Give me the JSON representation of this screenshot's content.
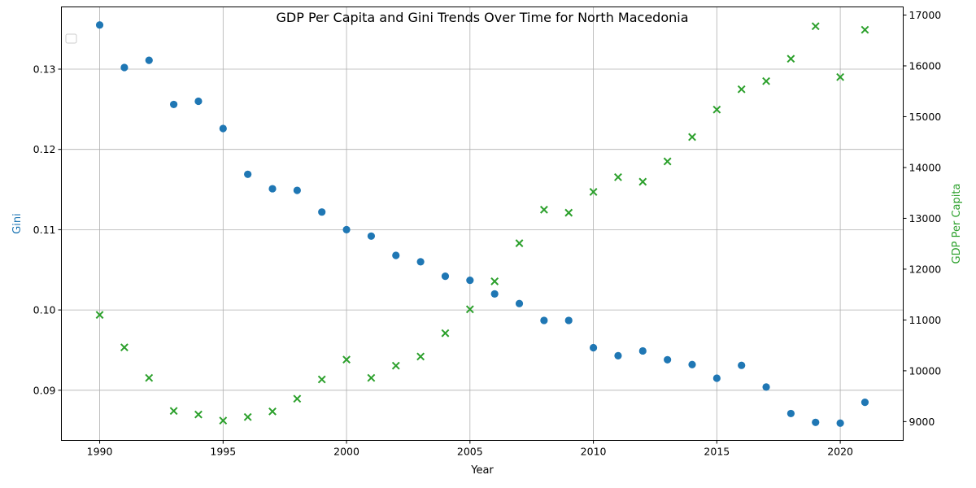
{
  "chart_data": {
    "type": "scatter",
    "title": "GDP Per Capita and Gini Trends Over Time for North Macedonia",
    "xlabel": "Year",
    "ylabel_left": "Gini",
    "ylabel_right": "GDP Per Capita",
    "x": [
      1990,
      1991,
      1992,
      1993,
      1994,
      1995,
      1996,
      1997,
      1998,
      1999,
      2000,
      2001,
      2002,
      2003,
      2004,
      2005,
      2006,
      2007,
      2008,
      2009,
      2010,
      2011,
      2012,
      2013,
      2014,
      2015,
      2016,
      2017,
      2018,
      2019,
      2020,
      2021
    ],
    "xlim": [
      1988.45,
      2022.55
    ],
    "x_ticks": [
      1990,
      1995,
      2000,
      2005,
      2010,
      2015,
      2020
    ],
    "series": [
      {
        "axis": "left",
        "marker": "circle",
        "color": "#1f77b4",
        "values": [
          0.1355,
          0.1302,
          0.1311,
          0.1256,
          0.126,
          0.1226,
          0.1169,
          0.1151,
          0.1149,
          0.1122,
          0.11,
          0.1092,
          0.1068,
          0.106,
          0.1042,
          0.1037,
          0.102,
          0.1008,
          0.0987,
          0.0987,
          0.0953,
          0.0943,
          0.0949,
          0.0938,
          0.0932,
          0.0915,
          0.0931,
          0.0904,
          0.0871,
          0.086,
          0.0859,
          0.0885
        ]
      },
      {
        "axis": "right",
        "marker": "x",
        "color": "#2ca02c",
        "values": [
          11100,
          10460,
          9860,
          9210,
          9140,
          9020,
          9090,
          9200,
          9450,
          9830,
          10220,
          9860,
          10100,
          10280,
          10740,
          11210,
          11760,
          12510,
          13170,
          13110,
          13520,
          13810,
          13720,
          14120,
          14600,
          15140,
          15540,
          15700,
          16140,
          16780,
          15780,
          16710
        ]
      }
    ],
    "ylim_left": [
      0.08375,
      0.13775
    ],
    "y_ticks_left": [
      "0.09",
      "0.10",
      "0.11",
      "0.12",
      "0.13"
    ],
    "ylim_right": [
      8630,
      17160
    ],
    "y_ticks_right": [
      "9000",
      "10000",
      "11000",
      "12000",
      "13000",
      "14000",
      "15000",
      "16000",
      "17000"
    ],
    "grid": true,
    "legend": "top-left (empty)",
    "colors": {
      "left_axis": "#1f77b4",
      "right_axis": "#2ca02c",
      "grid": "#b0b0b0"
    }
  }
}
